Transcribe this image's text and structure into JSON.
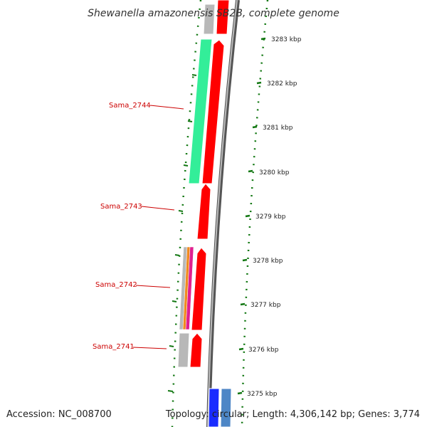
{
  "title": "Shewanella amazonensis SB2B, complete genome",
  "footer": {
    "accession": "Accession: NC_008700",
    "summary": "Topology: circular; Length: 4,306,142 bp; Genes: 3,774"
  },
  "axis": {
    "ticks": [
      "3283 kbp",
      "3282 kbp",
      "3281 kbp",
      "3280 kbp",
      "3279 kbp",
      "3278 kbp",
      "3277 kbp",
      "3276 kbp",
      "3275 kbp"
    ]
  },
  "genes": [
    {
      "id": "Sama_2744",
      "label": "Sama_2744"
    },
    {
      "id": "Sama_2743",
      "label": "Sama_2743"
    },
    {
      "id": "Sama_2742",
      "label": "Sama_2742"
    },
    {
      "id": "Sama_2741",
      "label": "Sama_2741"
    }
  ],
  "colors": {
    "strand_gene": "#ff0000",
    "cog_green": "#33ee99",
    "cog_orange": "#f08a20",
    "cog_magenta": "#e0208f",
    "cog_gray": "#b8b8b8",
    "cog_blue": "#1a2cff",
    "cog_steel": "#4d86c6",
    "backbone": "#888888",
    "tick_green": "#117711",
    "label_red": "#cc0000"
  }
}
